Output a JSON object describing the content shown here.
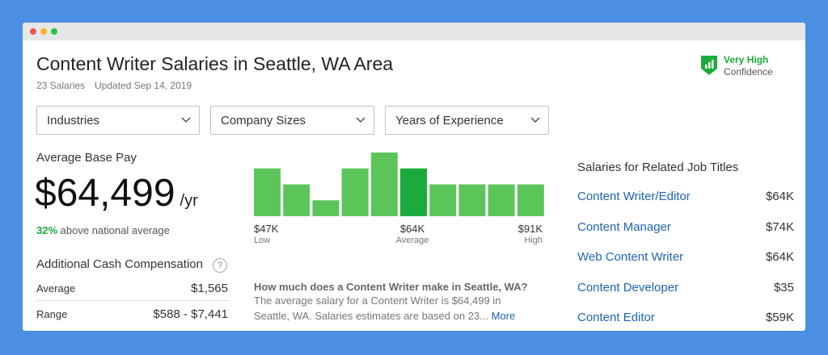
{
  "header": {
    "title": "Content Writer Salaries in Seattle, WA Area",
    "count": "23 Salaries",
    "updated": "Updated Sep 14, 2019"
  },
  "confidence": {
    "level": "Very High",
    "label": "Confidence"
  },
  "filters": [
    "Industries",
    "Company Sizes",
    "Years of Experience"
  ],
  "base_pay": {
    "label": "Average Base Pay",
    "amount": "$64,499",
    "unit": "/yr",
    "comparison": "32%",
    "comparison_text": "above national average"
  },
  "additional": {
    "title": "Additional Cash Compensation",
    "help": "?",
    "rows": [
      [
        "Average",
        "$1,565"
      ],
      [
        "Range",
        "$588 - $7,441"
      ]
    ]
  },
  "histogram": {
    "values": [
      3,
      2,
      1,
      3,
      4,
      3,
      2,
      2,
      2,
      2
    ],
    "colors": [
      "#5cc55a",
      "#5cc55a",
      "#5cc55a",
      "#5cc55a",
      "#5cc55a",
      "#1aab3c",
      "#5cc55a",
      "#5cc55a",
      "#5cc55a",
      "#5cc55a"
    ],
    "labels": [
      {
        "value": "$47K",
        "caption": "Low"
      },
      {
        "value": "$64K",
        "caption": "Average"
      },
      {
        "value": "$91K",
        "caption": "High"
      }
    ]
  },
  "question": {
    "heading": "How much does a Content Writer make in Seattle, WA?",
    "line1": "The average salary for a Content Writer is $64,499 in",
    "line2": "Seattle, WA. Salaries estimates are based on 23...",
    "more": "More"
  },
  "related": {
    "title": "Salaries for Related Job Titles",
    "rows": [
      {
        "title": "Content Writer/Editor",
        "pay": "$64K"
      },
      {
        "title": "Content Manager",
        "pay": "$74K"
      },
      {
        "title": "Web Content Writer",
        "pay": "$64K"
      },
      {
        "title": "Content Developer",
        "pay": "$35"
      },
      {
        "title": "Content Editor",
        "pay": "$59K"
      }
    ]
  }
}
